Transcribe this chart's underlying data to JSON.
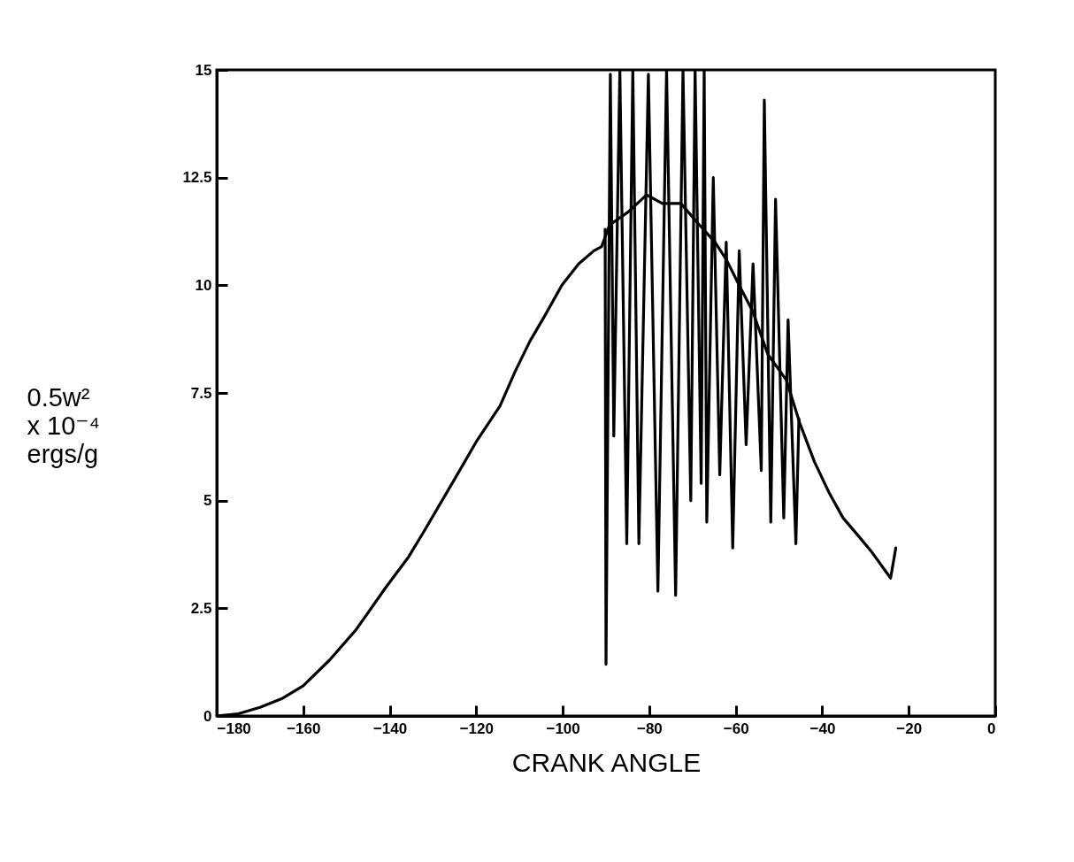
{
  "chart_data": {
    "type": "line",
    "xlabel": "CRANK ANGLE",
    "ylabel": "0.5w²\nx 10⁻⁴\nergs/g",
    "xlim": [
      -180,
      0
    ],
    "ylim": [
      0,
      15
    ],
    "xticks": [
      -180,
      -160,
      -140,
      -120,
      -100,
      -80,
      -60,
      -40,
      -20,
      0
    ],
    "yticks": [
      0,
      2.5,
      5,
      7.5,
      10,
      12.5,
      15
    ],
    "line_style": "solid",
    "marker": "none",
    "series": [
      {
        "color": "#000000",
        "x": [
          -180,
          -175,
          -170,
          -165,
          -160,
          -153.9,
          -147.8,
          -140.8,
          -135.6,
          -132,
          -125,
          -119.8,
          -114.5,
          -111,
          -107.6,
          -104.1,
          -100.2,
          -96.3,
          -92.8,
          -91,
          -89.2,
          -84.9,
          -80.6,
          -77,
          -72.7,
          -68.4,
          -64.8,
          -62.2,
          -58.7,
          -56.1,
          -52.6,
          -48.3,
          -45.2,
          -41.8,
          -38.5,
          -35.2,
          -31.8,
          -28.5,
          -24.2,
          -23
        ],
        "values": [
          0,
          0.05,
          0.2,
          0.4,
          0.7,
          1.3,
          2.0,
          3.0,
          3.7,
          4.3,
          5.5,
          6.4,
          7.2,
          8.0,
          8.7,
          9.3,
          10.0,
          10.5,
          10.8,
          10.9,
          11.4,
          11.7,
          12.1,
          11.9,
          11.9,
          11.4,
          11.0,
          10.6,
          9.9,
          9.4,
          8.4,
          7.8,
          6.8,
          5.9,
          5.2,
          4.6,
          4.2,
          3.8,
          3.2,
          3.9
        ]
      },
      {
        "color": "#000000",
        "x": [
          -90.2,
          -90,
          -89,
          -88.2,
          -86.8,
          -85.2,
          -83.8,
          -82.4,
          -80.2,
          -78,
          -76,
          -73.9,
          -72.2,
          -70.4,
          -69.4,
          -68,
          -67.3,
          -66.7,
          -65.2,
          -63.7,
          -62.2,
          -60.7,
          -59.2,
          -57.6,
          -56,
          -54.1,
          -53.4,
          -51.9,
          -50.8,
          -48.9,
          -47.9,
          -46.1,
          -45.4
        ],
        "values": [
          11.3,
          1.2,
          14.9,
          6.5,
          15,
          4.0,
          15,
          4.0,
          14.9,
          2.9,
          15,
          2.8,
          15,
          5.0,
          15,
          5.4,
          15,
          4.5,
          12.5,
          5.6,
          11.0,
          3.9,
          10.8,
          6.3,
          10.5,
          5.7,
          14.3,
          4.5,
          12.0,
          4.6,
          9.2,
          4.0,
          6.9
        ]
      }
    ]
  }
}
